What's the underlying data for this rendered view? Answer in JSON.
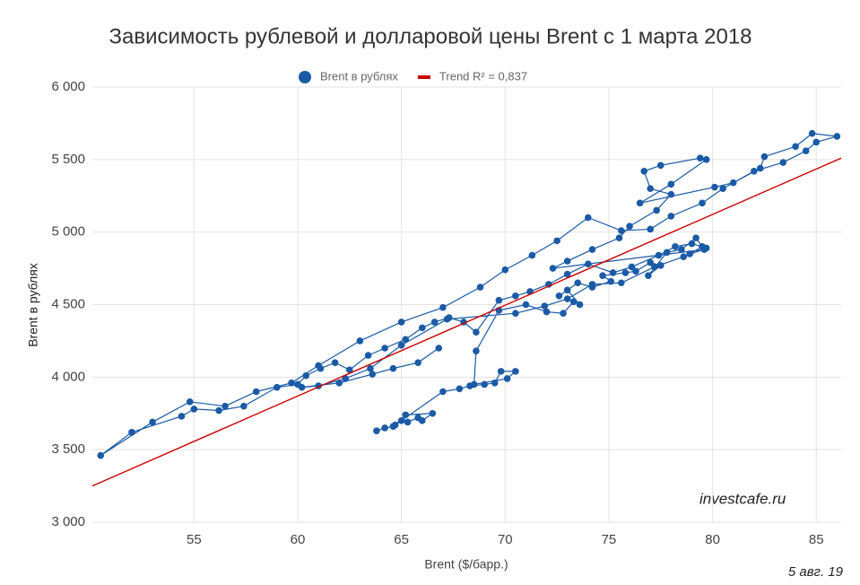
{
  "chart_data": {
    "type": "scatter",
    "title": "Зависимость рублевой и долларовой цены Brent с 1 марта 2018",
    "x_label": "Brent ($/барр.)",
    "y_label": "Brent в рублях",
    "annotations": [
      "investcafe.ru",
      "5 авг. 19"
    ],
    "xlim": [
      50.1,
      86.2
    ],
    "ylim": [
      3000,
      6000
    ],
    "xticks": [
      55,
      60,
      65,
      70,
      75,
      80,
      85
    ],
    "yticks": [
      {
        "value": 3000,
        "label": "3 000"
      },
      {
        "value": 3500,
        "label": "3 500"
      },
      {
        "value": 4000,
        "label": "4 000"
      },
      {
        "value": 4500,
        "label": "4 500"
      },
      {
        "value": 5000,
        "label": "5 000"
      },
      {
        "value": 5500,
        "label": "5 500"
      },
      {
        "value": 6000,
        "label": "6 000"
      }
    ],
    "grid": true,
    "legend": "top",
    "series": [
      {
        "name": "Brent в рублях",
        "color": "#1a5aa6",
        "markers": true,
        "x": [
          63.8,
          64.2,
          64.6,
          65.0,
          65.3,
          65.8,
          66.0,
          66.5,
          65.2,
          64.7,
          67.0,
          67.8,
          68.3,
          69.0,
          69.5,
          69.8,
          70.5,
          70.1,
          68.5,
          68.6,
          69.7,
          71.0,
          72.0,
          72.8,
          73.3,
          73.6,
          73.0,
          72.6,
          73.5,
          74.2,
          75.1,
          74.7,
          75.8,
          76.3,
          77.0,
          77.5,
          76.9,
          77.8,
          78.5,
          79.2,
          79.5,
          78.9,
          79.6,
          72.3,
          73.0,
          74.2,
          75.5,
          76.0,
          77.3,
          78.0,
          77.0,
          76.7,
          77.5,
          79.4,
          79.7,
          78.0,
          76.5,
          80.1,
          81.0,
          82.3,
          82.5,
          84.0,
          84.8,
          86.0,
          85.0,
          84.5,
          83.4,
          82.0,
          80.5,
          79.5,
          78.0,
          77.0,
          75.6,
          74.0,
          72.5,
          71.3,
          70.0,
          68.8,
          67.0,
          65.0,
          63.0,
          61.0,
          59.7,
          58.0,
          56.5,
          54.8,
          53.0,
          50.5,
          52.0,
          54.4,
          55.0,
          56.2,
          57.4,
          59.0,
          60.0,
          60.4,
          61.1,
          61.8,
          62.5,
          63.4,
          64.2,
          65.2,
          66.0,
          66.6,
          67.3,
          68.0,
          68.6,
          69.7,
          70.5,
          71.2,
          72.1,
          73.0,
          74.0,
          75.2,
          76.1,
          77.4,
          78.2,
          79.0,
          79.7,
          78.6,
          77.2,
          75.6,
          74.2,
          73.0,
          71.9,
          70.5,
          67.2,
          65.0,
          63.5,
          62.3,
          61.0,
          60.2,
          62.0,
          63.6,
          64.6,
          65.8,
          66.8
        ],
        "values": [
          3630,
          3650,
          3660,
          3700,
          3690,
          3720,
          3700,
          3750,
          3740,
          3670,
          3900,
          3920,
          3940,
          3950,
          3960,
          4040,
          4040,
          3990,
          3950,
          4180,
          4460,
          4500,
          4450,
          4440,
          4520,
          4500,
          4600,
          4560,
          4650,
          4620,
          4660,
          4700,
          4720,
          4730,
          4790,
          4770,
          4700,
          4860,
          4880,
          4960,
          4900,
          4850,
          4880,
          4750,
          4800,
          4880,
          4960,
          5040,
          5150,
          5260,
          5300,
          5420,
          5460,
          5510,
          5500,
          5330,
          5200,
          5310,
          5340,
          5440,
          5520,
          5590,
          5680,
          5660,
          5620,
          5560,
          5480,
          5420,
          5300,
          5200,
          5110,
          5020,
          5010,
          5100,
          4940,
          4840,
          4740,
          4620,
          4480,
          4380,
          4250,
          4080,
          3960,
          3900,
          3800,
          3830,
          3690,
          3460,
          3620,
          3730,
          3780,
          3770,
          3800,
          3930,
          3950,
          4010,
          4060,
          4100,
          4050,
          4150,
          4200,
          4260,
          4340,
          4380,
          4410,
          4380,
          4310,
          4530,
          4560,
          4590,
          4640,
          4710,
          4780,
          4720,
          4760,
          4840,
          4900,
          4920,
          4890,
          4830,
          4760,
          4650,
          4640,
          4540,
          4490,
          4440,
          4400,
          4220,
          4060,
          3990,
          3940,
          3930,
          3960,
          4020,
          4060,
          4100,
          4200
        ]
      },
      {
        "name": "Trend R² = 0,837",
        "color": "#cc0000",
        "markers": false,
        "x": [
          50.1,
          86.2
        ],
        "values": [
          3250,
          5510
        ]
      }
    ]
  }
}
